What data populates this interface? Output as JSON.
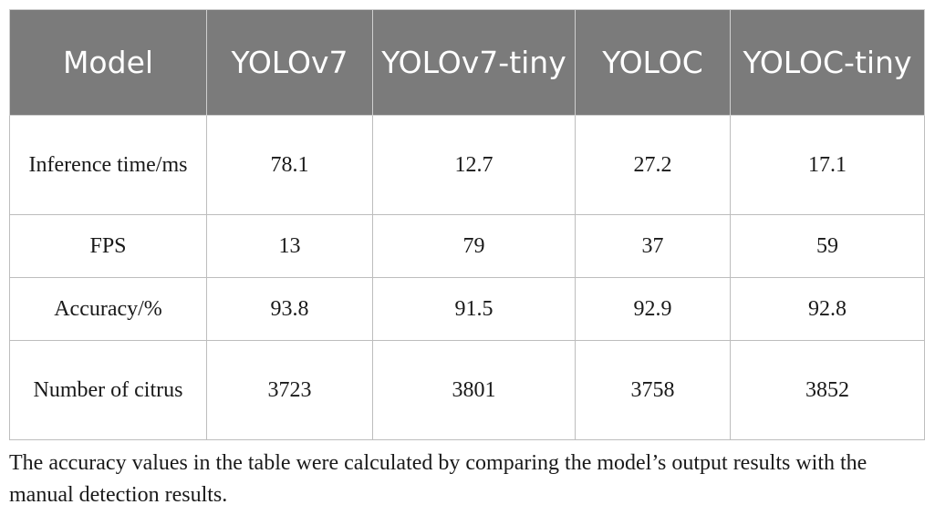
{
  "table": {
    "headers": [
      "Model",
      "YOLOv7",
      "YOLOv7-tiny",
      "YOLOC",
      "YOLOC-tiny"
    ],
    "rows": [
      {
        "label": "Inference time/ms",
        "values": [
          "78.1",
          "12.7",
          "27.2",
          "17.1"
        ]
      },
      {
        "label": "FPS",
        "values": [
          "13",
          "79",
          "37",
          "59"
        ]
      },
      {
        "label": "Accuracy/%",
        "values": [
          "93.8",
          "91.5",
          "92.9",
          "92.8"
        ]
      },
      {
        "label": "Number of citrus",
        "values": [
          "3723",
          "3801",
          "3758",
          "3852"
        ]
      }
    ]
  },
  "footnote": "The accuracy values in the table were calculated by comparing the model’s output results with the manual detection results.",
  "colors": {
    "header_bg": "#7b7b7b",
    "header_text": "#ffffff",
    "grid": "#bdbdbd"
  }
}
